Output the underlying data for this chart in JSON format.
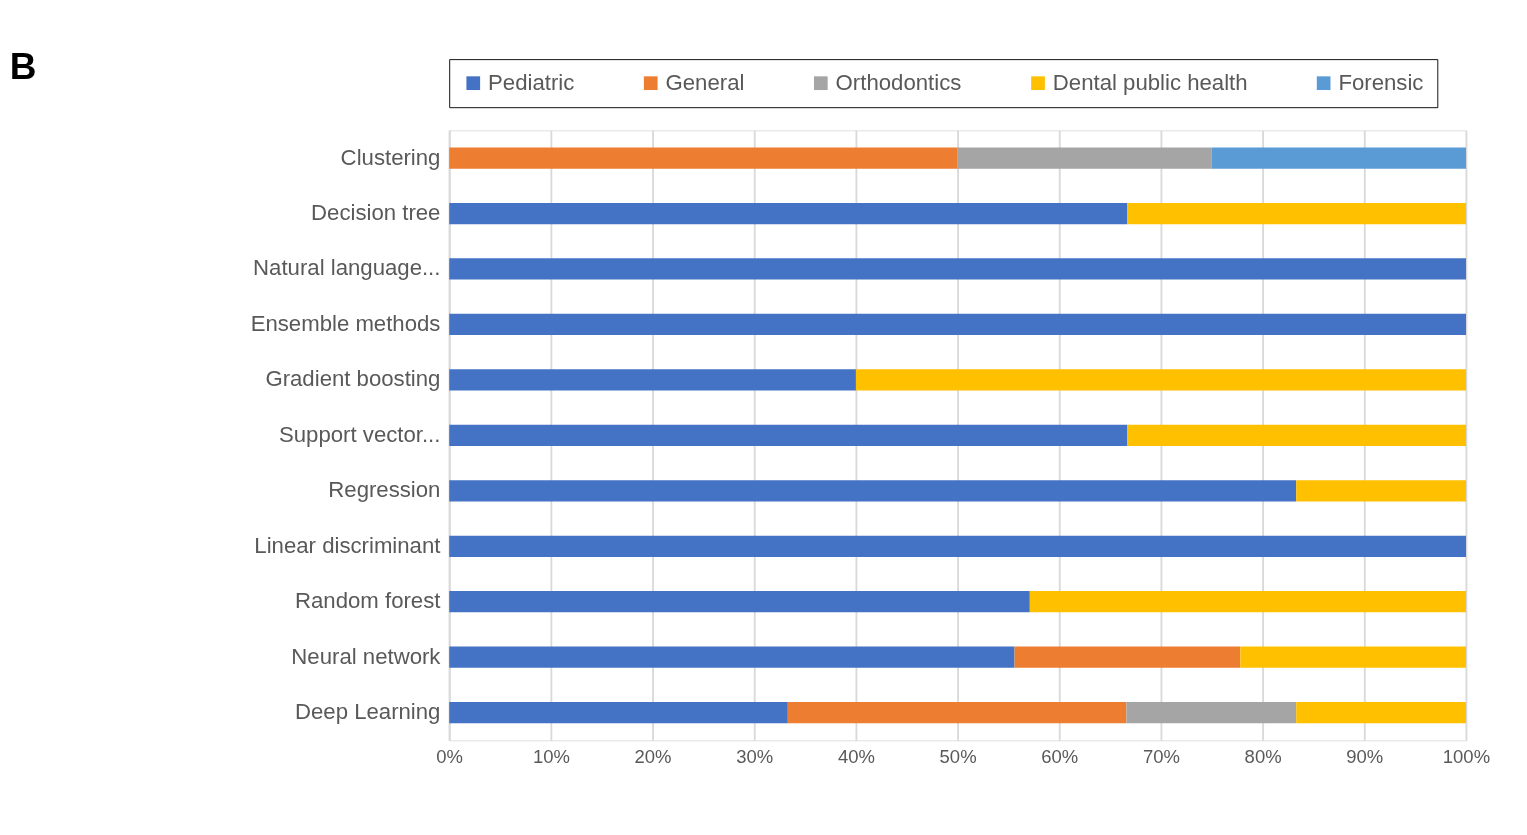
{
  "chart_data": {
    "type": "bar",
    "title": "B",
    "orientation": "horizontal",
    "stacked": true,
    "categories": [
      "Clustering",
      "Decision tree",
      "Natural language...",
      "Ensemble methods",
      "Gradient boosting",
      "Support vector...",
      "Regression",
      "Linear discriminant",
      "Random forest",
      "Neural network",
      "Deep Learning"
    ],
    "series": [
      {
        "name": "Pediatric",
        "color": "#4472c4",
        "values": [
          null,
          66.7,
          100,
          100,
          40,
          66.7,
          83.3,
          100,
          57.1,
          55.6,
          33.3
        ]
      },
      {
        "name": "General",
        "color": "#ed7d31",
        "values": [
          50,
          null,
          null,
          null,
          null,
          null,
          null,
          null,
          null,
          22.2,
          33.3
        ]
      },
      {
        "name": "Orthodontics",
        "color": "#a5a5a5",
        "values": [
          25,
          null,
          null,
          null,
          null,
          null,
          null,
          null,
          null,
          null,
          16.7
        ]
      },
      {
        "name": "Dental public health",
        "color": "#ffc000",
        "values": [
          null,
          33.3,
          null,
          null,
          60,
          33.3,
          16.7,
          null,
          42.9,
          22.2,
          16.7
        ]
      },
      {
        "name": "Forensic",
        "color": "#5b9bd5",
        "values": [
          25,
          null,
          null,
          null,
          null,
          null,
          null,
          null,
          null,
          null,
          null
        ]
      }
    ],
    "xlim": [
      0,
      100
    ],
    "xticks": [
      {
        "value": 0,
        "label": "0%"
      },
      {
        "value": 10,
        "label": "10%"
      },
      {
        "value": 20,
        "label": "20%"
      },
      {
        "value": 30,
        "label": "30%"
      },
      {
        "value": 40,
        "label": "40%"
      },
      {
        "value": 50,
        "label": "50%"
      },
      {
        "value": 60,
        "label": "60%"
      },
      {
        "value": 70,
        "label": "70%"
      },
      {
        "value": 80,
        "label": "80%"
      },
      {
        "value": 90,
        "label": "90%"
      },
      {
        "value": 100,
        "label": "100%"
      }
    ],
    "grid": "x",
    "legend": "top"
  }
}
